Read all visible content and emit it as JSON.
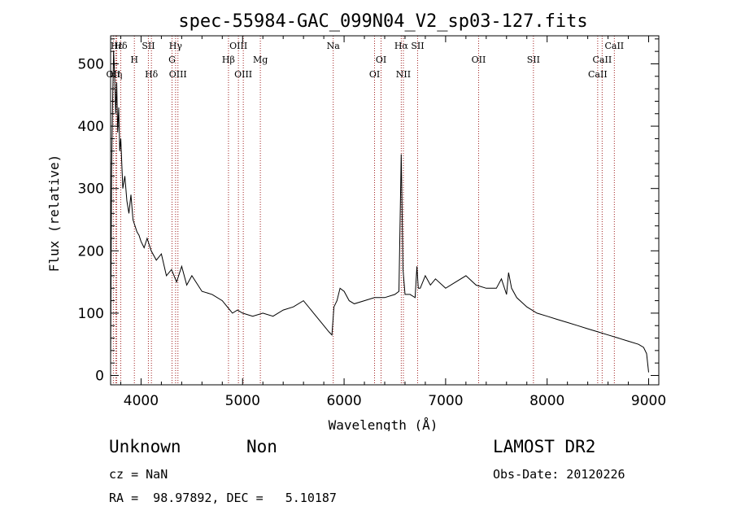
{
  "chart_data": {
    "type": "line",
    "title": "spec-55984-GAC_099N04_V2_sp03-127.fits",
    "xlabel": "Wavelength (Å)",
    "ylabel": "Flux (relative)",
    "xlim": [
      3700,
      9100
    ],
    "ylim": [
      -15,
      545
    ],
    "x_ticks": [
      4000,
      5000,
      6000,
      7000,
      8000,
      9000
    ],
    "y_ticks": [
      0,
      100,
      200,
      300,
      400,
      500
    ],
    "series": [
      {
        "name": "flux",
        "x": [
          3700,
          3710,
          3720,
          3730,
          3740,
          3750,
          3760,
          3770,
          3780,
          3790,
          3800,
          3820,
          3840,
          3860,
          3880,
          3900,
          3920,
          3940,
          3960,
          3980,
          4000,
          4030,
          4060,
          4100,
          4150,
          4200,
          4250,
          4300,
          4350,
          4400,
          4450,
          4500,
          4600,
          4700,
          4800,
          4850,
          4900,
          4950,
          5000,
          5100,
          5200,
          5300,
          5400,
          5500,
          5600,
          5700,
          5800,
          5850,
          5880,
          5900,
          5930,
          5960,
          6000,
          6050,
          6100,
          6200,
          6300,
          6400,
          6500,
          6540,
          6563,
          6580,
          6600,
          6650,
          6700,
          6717,
          6731,
          6750,
          6800,
          6850,
          6900,
          7000,
          7100,
          7200,
          7300,
          7400,
          7500,
          7550,
          7600,
          7620,
          7650,
          7700,
          7800,
          7900,
          8000,
          8100,
          8200,
          8300,
          8400,
          8500,
          8600,
          8700,
          8800,
          8900,
          8950,
          8980,
          9000
        ],
        "y": [
          15,
          330,
          440,
          520,
          480,
          420,
          470,
          390,
          430,
          360,
          380,
          300,
          320,
          280,
          260,
          290,
          250,
          240,
          230,
          225,
          215,
          205,
          220,
          200,
          185,
          195,
          160,
          170,
          150,
          175,
          145,
          160,
          135,
          130,
          120,
          110,
          100,
          105,
          100,
          95,
          100,
          95,
          105,
          110,
          120,
          100,
          80,
          70,
          65,
          110,
          120,
          140,
          135,
          120,
          115,
          120,
          125,
          125,
          130,
          135,
          355,
          170,
          130,
          130,
          125,
          175,
          140,
          140,
          160,
          145,
          155,
          140,
          150,
          160,
          145,
          140,
          140,
          155,
          130,
          165,
          140,
          125,
          110,
          100,
          95,
          90,
          85,
          80,
          75,
          70,
          65,
          60,
          55,
          50,
          45,
          35,
          5
        ]
      }
    ],
    "spectral_lines": [
      {
        "label": "OII",
        "wavelength": 3727,
        "row": 3
      },
      {
        "label": "Hη",
        "wavelength": 3750,
        "row": 3
      },
      {
        "label": "Hε",
        "wavelength": 3760,
        "row": 1
      },
      {
        "label": "Hδ",
        "wavelength": 3800,
        "row": 1
      },
      {
        "label": "H",
        "wavelength": 3934,
        "row": 2
      },
      {
        "label": "SII",
        "wavelength": 4072,
        "row": 1
      },
      {
        "label": "Hδ",
        "wavelength": 4102,
        "row": 3
      },
      {
        "label": "Hγ",
        "wavelength": 4340,
        "row": 1
      },
      {
        "label": "G",
        "wavelength": 4305,
        "row": 2
      },
      {
        "label": "OIII",
        "wavelength": 4363,
        "row": 3
      },
      {
        "label": "Hβ",
        "wavelength": 4861,
        "row": 2
      },
      {
        "label": "OIII",
        "wavelength": 4959,
        "row": 1
      },
      {
        "label": "OIII",
        "wavelength": 5007,
        "row": 3
      },
      {
        "label": "Mg",
        "wavelength": 5175,
        "row": 2
      },
      {
        "label": "Na",
        "wavelength": 5893,
        "row": 1
      },
      {
        "label": "OI",
        "wavelength": 6364,
        "row": 2
      },
      {
        "label": "OI",
        "wavelength": 6300,
        "row": 3
      },
      {
        "label": "Hα",
        "wavelength": 6563,
        "row": 1
      },
      {
        "label": "NII",
        "wavelength": 6584,
        "row": 3
      },
      {
        "label": "SII",
        "wavelength": 6724,
        "row": 1
      },
      {
        "label": "OII",
        "wavelength": 7325,
        "row": 2
      },
      {
        "label": "SII",
        "wavelength": 7865,
        "row": 2
      },
      {
        "label": "CaII",
        "wavelength": 8662,
        "row": 1
      },
      {
        "label": "CaII",
        "wavelength": 8542,
        "row": 2
      },
      {
        "label": "CaII",
        "wavelength": 8498,
        "row": 3
      }
    ],
    "line_color": "#a02020"
  },
  "info": {
    "class": "Unknown",
    "subclass": "Non",
    "survey": "LAMOST DR2",
    "cz": "cz = NaN",
    "obs_date": "Obs-Date: 20120226",
    "coords": "RA =  98.97892, DEC =   5.10187"
  }
}
